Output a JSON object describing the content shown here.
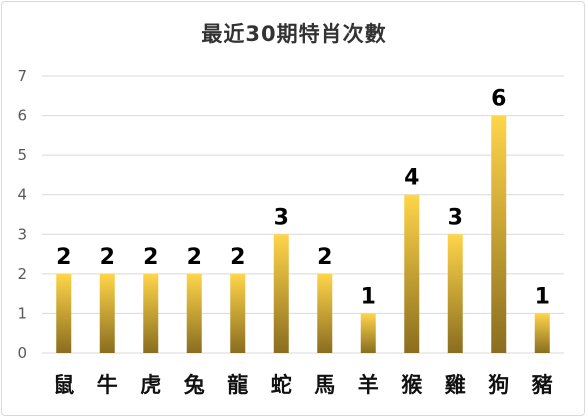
{
  "chart_data": {
    "type": "bar",
    "title": "最近30期特肖次數",
    "xlabel": "",
    "ylabel": "",
    "categories": [
      "鼠",
      "牛",
      "虎",
      "兔",
      "龍",
      "蛇",
      "馬",
      "羊",
      "猴",
      "雞",
      "狗",
      "豬"
    ],
    "values": [
      2,
      2,
      2,
      2,
      2,
      3,
      2,
      1,
      4,
      3,
      6,
      1
    ],
    "ylim": [
      0,
      7
    ],
    "yticks": [
      0,
      1,
      2,
      3,
      4,
      5,
      6,
      7
    ],
    "grid": true,
    "legend": "none",
    "data_labels": true,
    "colors": {
      "bar_top": "#ffd54a",
      "bar_bottom": "#8a6d1f",
      "grid": "#d9d9d9"
    }
  }
}
